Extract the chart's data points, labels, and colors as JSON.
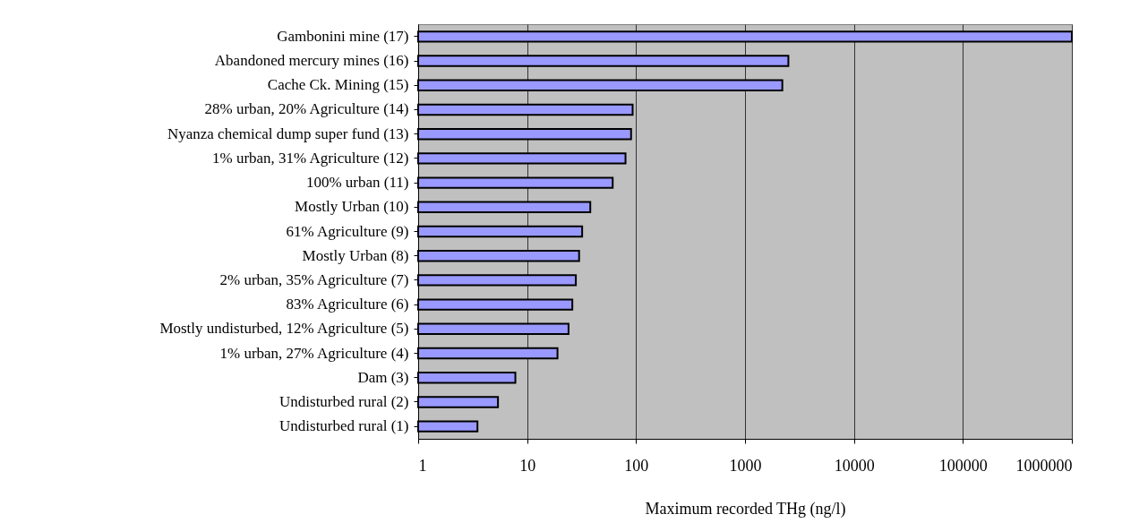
{
  "chart_data": {
    "type": "bar",
    "orientation": "horizontal",
    "log": "x",
    "xlabel": "Maximum recorded THg (ng/l)",
    "categories": [
      "Gambonini mine (17)",
      "Abandoned mercury mines (16)",
      "Cache Ck. Mining (15)",
      "28% urban, 20% Agriculture (14)",
      "Nyanza chemical dump super fund (13)",
      "1% urban, 31% Agriculture (12)",
      "100% urban (11)",
      "Mostly Urban (10)",
      "61% Agriculture (9)",
      "Mostly Urban (8)",
      "2% urban, 35% Agriculture (7)",
      "83% Agriculture (6)",
      "Mostly undisturbed, 12% Agriculture (5)",
      "1% urban, 27% Agriculture (4)",
      "Dam (3)",
      "Undisturbed rural (2)",
      "Undisturbed rural (1)"
    ],
    "values": [
      1000000,
      2500,
      2200,
      93,
      90,
      80,
      61,
      38,
      32,
      30,
      28,
      26,
      24,
      19,
      7.8,
      5.4,
      3.5
    ],
    "color": "#9999ff",
    "xlim": [
      1,
      1000000
    ],
    "xticks": [
      1,
      10,
      100,
      1000,
      10000,
      100000,
      1000000
    ],
    "grid": "x"
  }
}
